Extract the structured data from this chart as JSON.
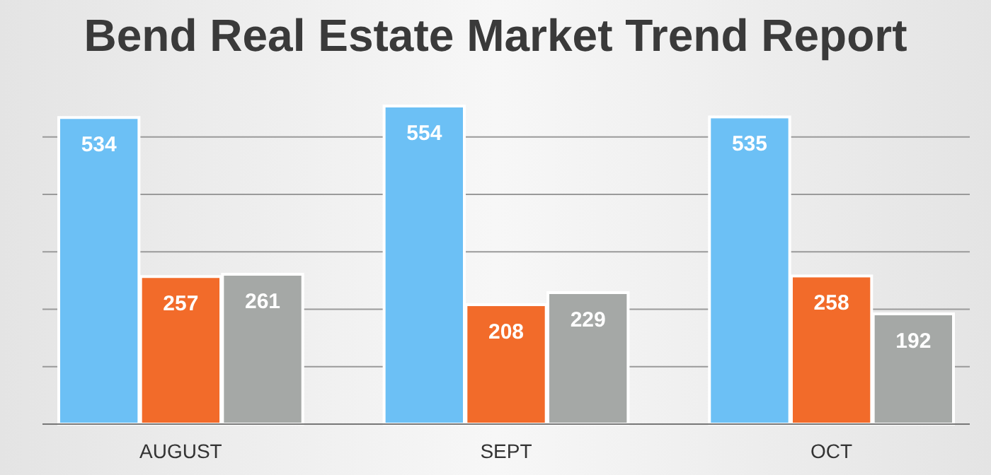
{
  "chart_data": {
    "type": "bar",
    "title": "Bend Real Estate Market Trend Report",
    "categories": [
      "AUGUST",
      "SEPT",
      "OCT"
    ],
    "series": [
      {
        "color": "#6cc0f5",
        "values": [
          534,
          554,
          535
        ]
      },
      {
        "color": "#f26b2a",
        "values": [
          257,
          208,
          258
        ]
      },
      {
        "color": "#a5a8a6",
        "values": [
          261,
          229,
          192
        ]
      }
    ],
    "yticks": [
      {
        "value": 0,
        "label": null
      },
      {
        "value": 100,
        "label": null
      },
      {
        "value": 200,
        "label": null
      },
      {
        "value": 300,
        "label": null
      },
      {
        "value": 400,
        "label": null
      },
      {
        "value": 500,
        "label": null
      }
    ],
    "grid": "y",
    "tick_labels": "x",
    "data_labels": true
  }
}
